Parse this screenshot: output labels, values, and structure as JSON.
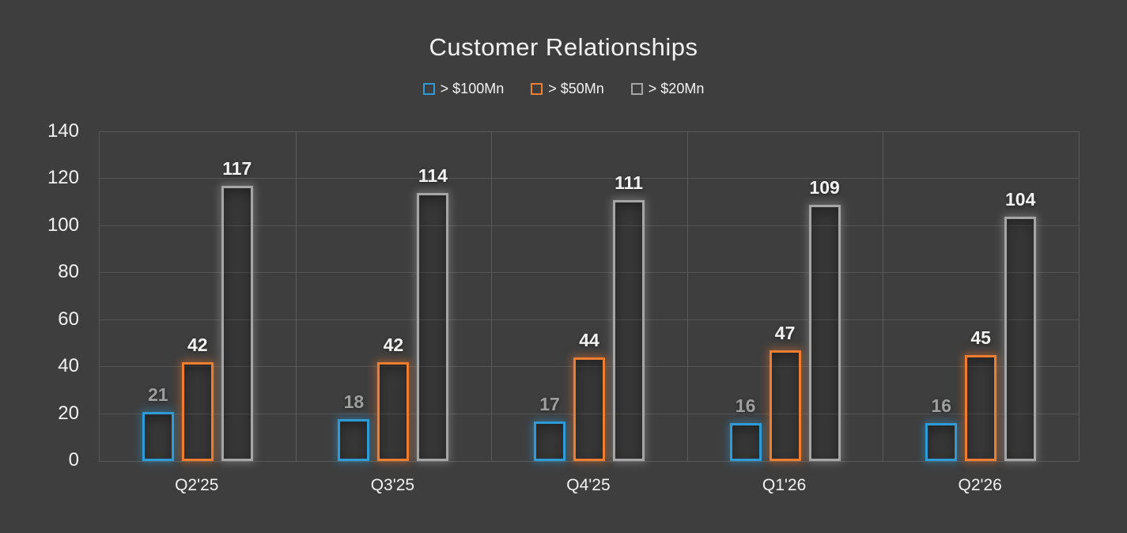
{
  "page": {
    "background_color": "#3E3E3E",
    "grid_color": "#585858",
    "text_color": "#F2F2F2"
  },
  "chart_data": {
    "type": "bar",
    "title": "Customer Relationships",
    "subtitle": "",
    "xlabel": "",
    "ylabel": "",
    "legend_position": "top",
    "grid": {
      "horizontal": true,
      "vertical": true
    },
    "bar_style": "hollow-outline-glow",
    "categories": [
      "Q2'25",
      "Q3'25",
      "Q4'25",
      "Q1'26",
      "Q2'26"
    ],
    "series": [
      {
        "name": "> $100Mn",
        "color": "#2E9BD6",
        "label_color": "#9E9E9E",
        "values": [
          21,
          18,
          17,
          16,
          16
        ]
      },
      {
        "name": "> $50Mn",
        "color": "#ED7D31",
        "label_color": "#F2F2F2",
        "values": [
          42,
          42,
          44,
          47,
          45
        ]
      },
      {
        "name": "> $20Mn",
        "color": "#A6A6A6",
        "label_color": "#F2F2F2",
        "values": [
          117,
          114,
          111,
          109,
          104
        ]
      }
    ],
    "y_axis": {
      "min": 0,
      "max": 140,
      "step": 20,
      "tick_labels": [
        "0",
        "20",
        "40",
        "60",
        "80",
        "100",
        "120",
        "140"
      ]
    }
  }
}
